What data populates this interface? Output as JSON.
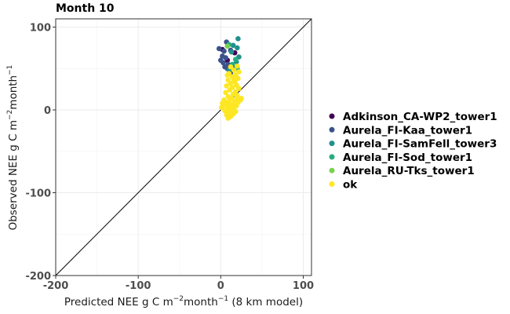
{
  "chart_data": {
    "type": "scatter",
    "title": "Month 10",
    "xlabel": {
      "base": "Predicted NEE g C m",
      "sup1": "−2",
      "mid": "month",
      "sup2": "−1",
      "tail": " (8 km model)"
    },
    "ylabel": {
      "base": "Observed NEE g C m",
      "sup1": "−2",
      "mid": "month",
      "sup2": "−1"
    },
    "xlim": [
      -200,
      110
    ],
    "ylim": [
      -200,
      110
    ],
    "xticks": [
      -200,
      -100,
      0,
      100
    ],
    "yticks": [
      -200,
      -100,
      0,
      100
    ],
    "xtick_labels": [
      "-200",
      "-100",
      "0",
      "100"
    ],
    "ytick_labels": [
      "-200",
      "-100",
      "0",
      "100"
    ],
    "grid": true,
    "reference_line": "y = x",
    "legend_position": "right",
    "series": [
      {
        "name": "Adkinson_CA-WP2_tower1",
        "color": "#440154",
        "points": [
          [
            2,
            73
          ],
          [
            17,
            69
          ],
          [
            8,
            60
          ]
        ]
      },
      {
        "name": "Aurela_FI-Kaa_tower1",
        "color": "#3b528b",
        "points": [
          [
            7,
            82
          ],
          [
            -2,
            74
          ],
          [
            4,
            71
          ],
          [
            12,
            72
          ],
          [
            2,
            65
          ],
          [
            6,
            63
          ],
          [
            0,
            60
          ],
          [
            3,
            57
          ],
          [
            9,
            55
          ],
          [
            5,
            52
          ],
          [
            12,
            45
          ],
          [
            8,
            50
          ]
        ]
      },
      {
        "name": "Aurela_FI-SamFell_tower3",
        "color": "#21908c",
        "points": [
          [
            21,
            86
          ],
          [
            15,
            78
          ],
          [
            20,
            75
          ],
          [
            13,
            70
          ],
          [
            22,
            64
          ],
          [
            19,
            58
          ],
          [
            16,
            52
          ],
          [
            10,
            48
          ]
        ]
      },
      {
        "name": "Aurela_FI-Sod_tower1",
        "color": "#27ad81",
        "points": [
          [
            10,
            79
          ],
          [
            18,
            61
          ],
          [
            14,
            55
          ],
          [
            20,
            50
          ]
        ]
      },
      {
        "name": "Aurela_RU-Tks_tower1",
        "color": "#7ad151",
        "points": [
          [
            8,
            77
          ]
        ]
      },
      {
        "name": "ok",
        "color": "#fde725",
        "points": [
          [
            12,
            52
          ],
          [
            20,
            53
          ],
          [
            16,
            48
          ],
          [
            22,
            46
          ],
          [
            10,
            44
          ],
          [
            18,
            42
          ],
          [
            14,
            40
          ],
          [
            21,
            38
          ],
          [
            9,
            36
          ],
          [
            17,
            34
          ],
          [
            12,
            32
          ],
          [
            19,
            30
          ],
          [
            7,
            29
          ],
          [
            14,
            27
          ],
          [
            22,
            26
          ],
          [
            11,
            24
          ],
          [
            18,
            22
          ],
          [
            6,
            21
          ],
          [
            15,
            19
          ],
          [
            20,
            17
          ],
          [
            9,
            16
          ],
          [
            13,
            14
          ],
          [
            23,
            13
          ],
          [
            4,
            12
          ],
          [
            17,
            11
          ],
          [
            10,
            10
          ],
          [
            21,
            9
          ],
          [
            2,
            8
          ],
          [
            14,
            7
          ],
          [
            7,
            6
          ],
          [
            19,
            5
          ],
          [
            11,
            4
          ],
          [
            1,
            3
          ],
          [
            16,
            2
          ],
          [
            8,
            1
          ],
          [
            13,
            0
          ],
          [
            5,
            -1
          ],
          [
            18,
            -2
          ],
          [
            10,
            -3
          ],
          [
            15,
            -5
          ],
          [
            7,
            -6
          ],
          [
            12,
            -8
          ],
          [
            9,
            -10
          ],
          [
            14,
            -4
          ],
          [
            3,
            5
          ],
          [
            20,
            15
          ],
          [
            16,
            36
          ],
          [
            8,
            42
          ],
          [
            24,
            12
          ],
          [
            25,
            14
          ],
          [
            6,
            9
          ]
        ]
      }
    ]
  }
}
